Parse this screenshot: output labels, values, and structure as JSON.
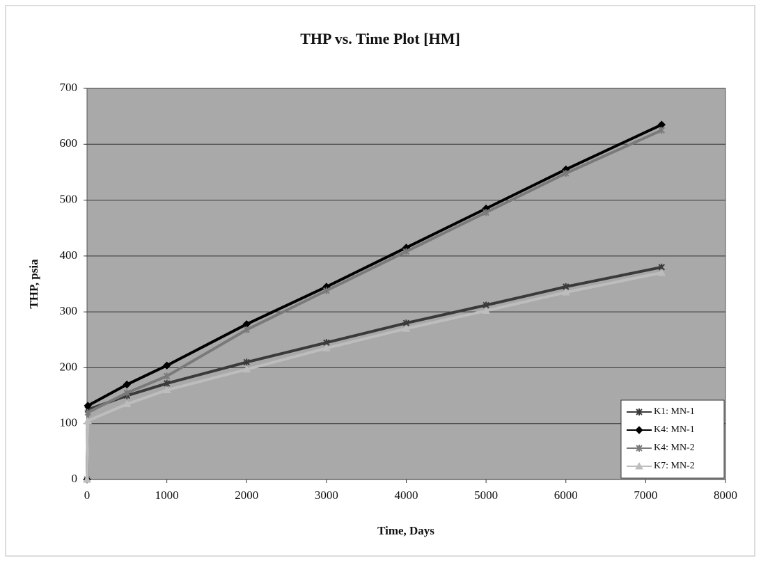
{
  "chart_data": {
    "type": "scatter",
    "title": "THP vs. Time Plot  [HM]",
    "x_label": "Time, Days",
    "y_label": "THP, psia",
    "xlim": [
      0,
      8000
    ],
    "xticks": [
      0,
      1000,
      2000,
      3000,
      4000,
      5000,
      6000,
      7000,
      8000
    ],
    "ylim": [
      0,
      700
    ],
    "yticks": [
      0,
      100,
      200,
      300,
      400,
      500,
      600,
      700
    ],
    "grid": true,
    "legend": "lower right",
    "series": [
      {
        "name": "K1: MN-1",
        "color": "#3a3a3a",
        "marker": "star",
        "x": [
          0,
          10,
          500,
          1000,
          2000,
          3000,
          4000,
          5000,
          6000,
          7200
        ],
        "values": [
          0,
          125,
          150,
          172,
          210,
          245,
          280,
          312,
          345,
          380
        ]
      },
      {
        "name": "K4: MN-1",
        "color": "#000000",
        "marker": "diamond",
        "x": [
          0,
          10,
          500,
          1000,
          2000,
          3000,
          4000,
          5000,
          6000,
          7200
        ],
        "values": [
          0,
          132,
          170,
          204,
          278,
          345,
          415,
          485,
          555,
          635
        ]
      },
      {
        "name": "K4: MN-2",
        "color": "#7a7a7a",
        "marker": "star",
        "x": [
          0,
          10,
          500,
          1000,
          2000,
          3000,
          4000,
          5000,
          6000,
          7200
        ],
        "values": [
          0,
          120,
          155,
          185,
          268,
          338,
          408,
          478,
          548,
          625
        ]
      },
      {
        "name": "K7: MN-2",
        "color": "#bdbdbd",
        "marker": "triangle",
        "x": [
          0,
          10,
          500,
          1000,
          2000,
          3000,
          4000,
          5000,
          6000,
          7200
        ],
        "values": [
          0,
          105,
          135,
          160,
          197,
          235,
          270,
          302,
          335,
          370
        ]
      }
    ]
  }
}
